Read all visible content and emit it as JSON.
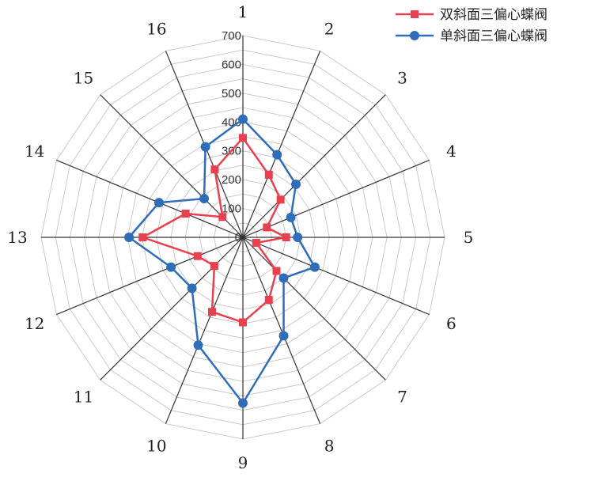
{
  "chart_data": {
    "type": "radar",
    "categories": [
      "1",
      "2",
      "3",
      "4",
      "5",
      "6",
      "7",
      "8",
      "9",
      "10",
      "11",
      "12",
      "13",
      "14",
      "15",
      "16"
    ],
    "rlim": [
      0,
      700
    ],
    "ticks": [
      "0",
      "100",
      "200",
      "300",
      "400",
      "500",
      "600",
      "700"
    ],
    "grid": true,
    "legend": "top-right",
    "series": [
      {
        "name": "双斜面三偏心蝶阀",
        "color": "#e8404e",
        "marker": "square",
        "values": [
          345,
          235,
          185,
          90,
          150,
          50,
          165,
          235,
          295,
          280,
          140,
          170,
          348,
          215,
          100,
          255
        ]
      },
      {
        "name": "单斜面三偏心蝶阀",
        "color": "#2f6db8",
        "marker": "circle",
        "values": [
          410,
          310,
          260,
          180,
          190,
          270,
          200,
          370,
          575,
          405,
          250,
          270,
          395,
          315,
          190,
          340
        ]
      }
    ]
  }
}
